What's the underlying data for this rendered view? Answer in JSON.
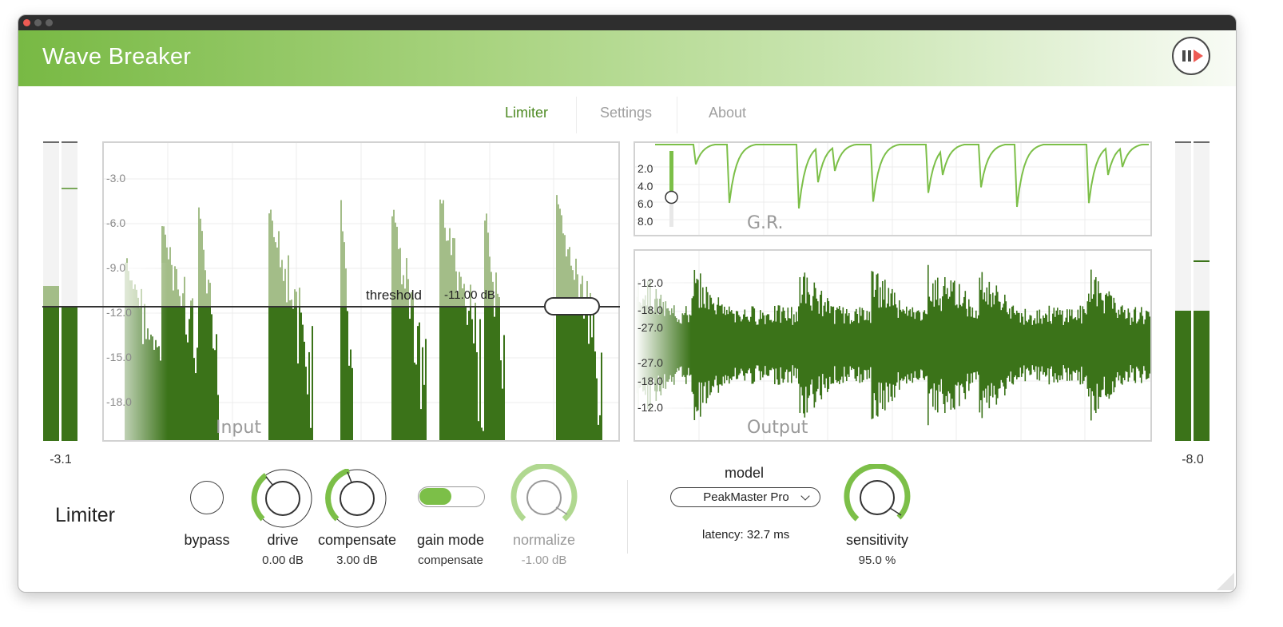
{
  "app": {
    "title": "Wave Breaker"
  },
  "tabs": [
    {
      "label": "Limiter",
      "active": true
    },
    {
      "label": "Settings",
      "active": false
    },
    {
      "label": "About",
      "active": false
    }
  ],
  "meters": {
    "input_value": "-3.1",
    "output_value": "-8.0"
  },
  "input_display": {
    "label": "Input",
    "db_ticks": [
      "-3.0",
      "-6.0",
      "-9.0",
      "-12.0",
      "-15.0",
      "-18.0"
    ],
    "threshold": {
      "label": "threshold",
      "value": "-11.00 dB"
    }
  },
  "gr_display": {
    "label": "G.R.",
    "ticks": [
      "2.0",
      "4.0",
      "6.0",
      "8.0"
    ]
  },
  "output_display": {
    "label": "Output",
    "ticks": [
      "-12.0",
      "-18.0",
      "-27.0",
      "-27.0",
      "-18.0",
      "-12.0"
    ]
  },
  "controls": {
    "section_title": "Limiter",
    "bypass": {
      "label": "bypass"
    },
    "drive": {
      "label": "drive",
      "value": "0.00 dB",
      "level": 0.35
    },
    "compensate": {
      "label": "compensate",
      "value": "3.00 dB",
      "level": 0.45
    },
    "gain_mode": {
      "label": "gain mode",
      "value": "compensate",
      "on": true
    },
    "normalize": {
      "label": "normalize",
      "value": "-1.00 dB",
      "level": 0.9,
      "disabled": true
    }
  },
  "model": {
    "label": "model",
    "selected": "PeakMaster Pro",
    "latency": "latency: 32.7 ms"
  },
  "sensitivity": {
    "label": "sensitivity",
    "value": "95.0 %",
    "level": 0.95
  },
  "colors": {
    "accent": "#7cbf48",
    "dark_green": "#3b7319",
    "light_green": "#a3bd88",
    "power_icon": "#ee5b54"
  }
}
